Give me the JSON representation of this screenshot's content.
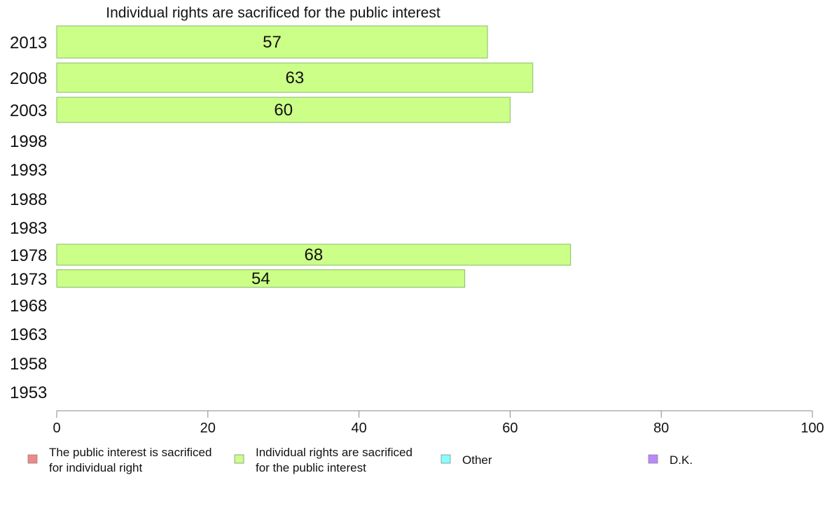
{
  "chart_data": {
    "type": "bar",
    "orientation": "horizontal",
    "title": "Individual rights are sacrificed for the public interest",
    "categories": [
      "2013",
      "2008",
      "2003",
      "1998",
      "1993",
      "1988",
      "1983",
      "1978",
      "1973",
      "1968",
      "1963",
      "1958",
      "1953"
    ],
    "series": [
      {
        "name": "Individual rights are sacrificed for the public interest",
        "values": [
          57,
          63,
          60,
          null,
          null,
          null,
          null,
          68,
          54,
          null,
          null,
          null,
          null
        ]
      }
    ],
    "xlim": [
      0,
      100
    ],
    "xticks": [
      0,
      20,
      40,
      60,
      80,
      100
    ],
    "bar_color": "#ccff88",
    "bar_stroke": "#88bb66",
    "legend_position": "bottom",
    "legend": [
      {
        "line1": "The public interest is sacrificed",
        "line2": "for individual right",
        "color": "#f08888"
      },
      {
        "line1": "Individual rights are sacrificed",
        "line2": "for the public interest",
        "color": "#ccff88"
      },
      {
        "line1": "Other",
        "line2": "",
        "color": "#88ffff"
      },
      {
        "line1": "D.K.",
        "line2": "",
        "color": "#bb88ff"
      }
    ]
  }
}
